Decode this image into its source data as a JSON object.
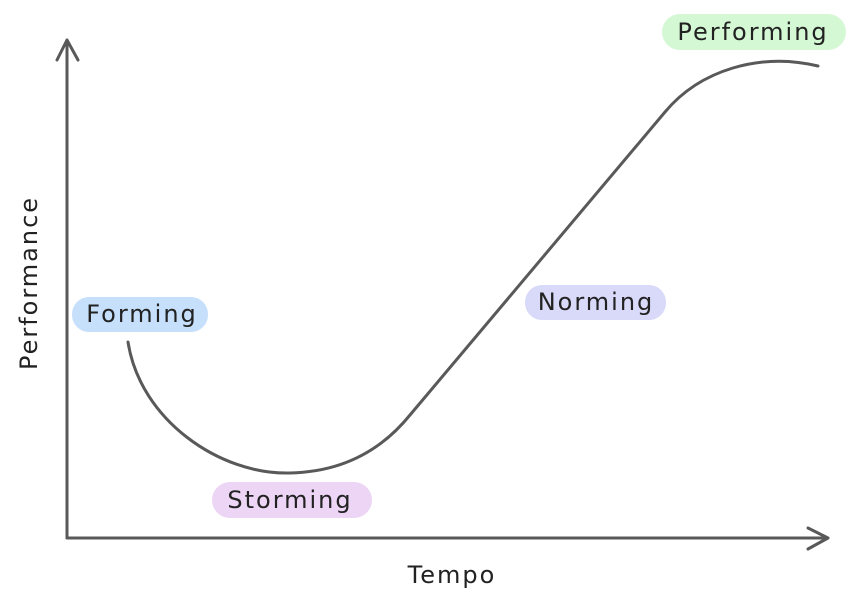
{
  "axes": {
    "y_label": "Performance",
    "x_label": "Tempo"
  },
  "stages": [
    {
      "label": "Forming"
    },
    {
      "label": "Storming"
    },
    {
      "label": "Norming"
    },
    {
      "label": "Performing"
    }
  ]
}
